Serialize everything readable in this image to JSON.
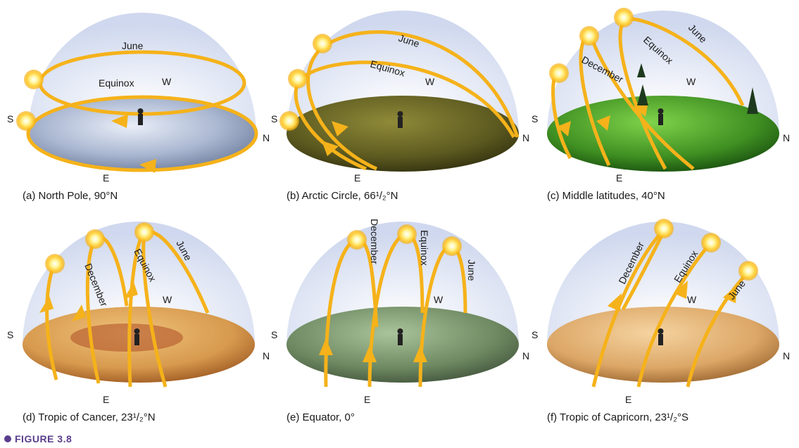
{
  "figure_label": "FIGURE 3.8",
  "directions": {
    "s": "S",
    "n": "N",
    "e": "E",
    "w": "W"
  },
  "path_labels": {
    "june": "June",
    "equinox": "Equinox",
    "december": "December"
  },
  "panels": [
    {
      "caption": "(a) North Pole, 90°N"
    },
    {
      "caption": "(b) Arctic Circle, 66¹/₂°N"
    },
    {
      "caption": "(c) Middle latitudes, 40°N"
    },
    {
      "caption": "(d) Tropic of Cancer, 23¹/₂°N"
    },
    {
      "caption": "(e) Equator, 0°"
    },
    {
      "caption": "(f) Tropic of Capricorn, 23¹/₂°S"
    }
  ],
  "colors": {
    "sky": "#dde3f3",
    "sun_path": "#f5b21a",
    "ice": "#c9d3e6",
    "tundra": "#7a7a2a",
    "forest": "#4f9a2c",
    "desert": "#d9a35a",
    "rainforest": "#6f8a62",
    "dry": "#e0b27a"
  }
}
